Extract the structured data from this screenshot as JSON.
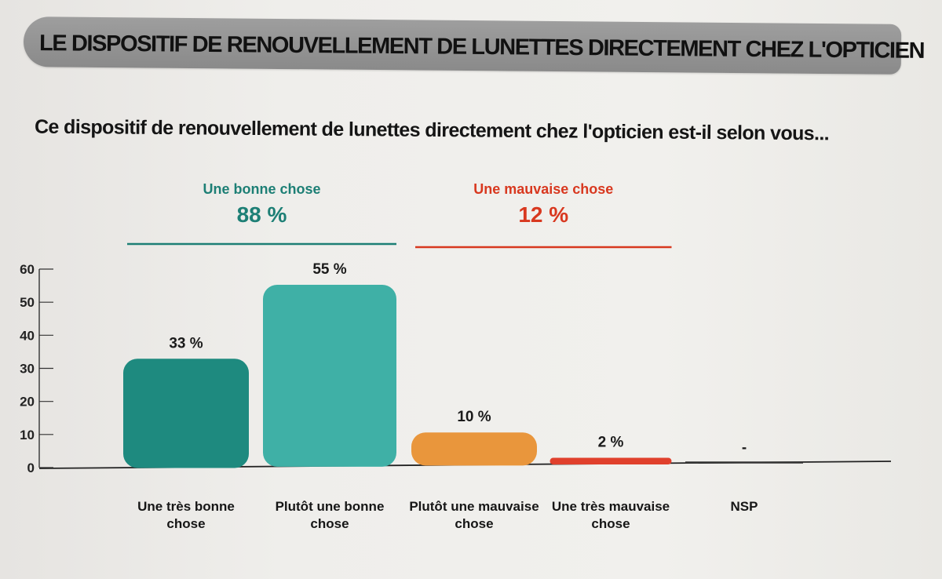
{
  "header": {
    "title": "LE DISPOSITIF DE RENOUVELLEMENT DE LUNETTES DIRECTEMENT CHEZ L'OPTICIEN",
    "question": "Ce dispositif de renouvellement de lunettes directement chez l'opticien est-il selon vous..."
  },
  "colors": {
    "dark_teal": "#1e8a7f",
    "light_teal": "#3fb0a6",
    "orange": "#e9963c",
    "red": "#e0402c",
    "nsp": "#333333",
    "group_good": "#1d7f75",
    "group_bad": "#d8381f"
  },
  "chart_data": {
    "type": "bar",
    "title": "",
    "xlabel": "",
    "ylabel": "",
    "ylim": [
      0,
      60
    ],
    "yticks": [
      0,
      10,
      20,
      30,
      40,
      50,
      60
    ],
    "grid": false,
    "categories": [
      [
        "Une très bonne",
        "chose"
      ],
      [
        "Plutôt une bonne",
        "chose"
      ],
      [
        "Plutôt une mauvaise",
        "chose"
      ],
      [
        "Une très mauvaise",
        "chose"
      ],
      [
        "NSP"
      ]
    ],
    "values": [
      33,
      55,
      10,
      2,
      0
    ],
    "value_labels": [
      "33 %",
      "55 %",
      "10 %",
      "2 %",
      "-"
    ],
    "bar_colors": [
      "#1e8a7f",
      "#3fb0a6",
      "#e9963c",
      "#e0402c",
      "#333333"
    ],
    "groups": [
      {
        "label": "Une bonne chose",
        "value": "88 %",
        "span": [
          0,
          1
        ],
        "color": "#1d7f75"
      },
      {
        "label": "Une mauvaise chose",
        "value": "12 %",
        "span": [
          2,
          3
        ],
        "color": "#d8381f"
      }
    ]
  }
}
